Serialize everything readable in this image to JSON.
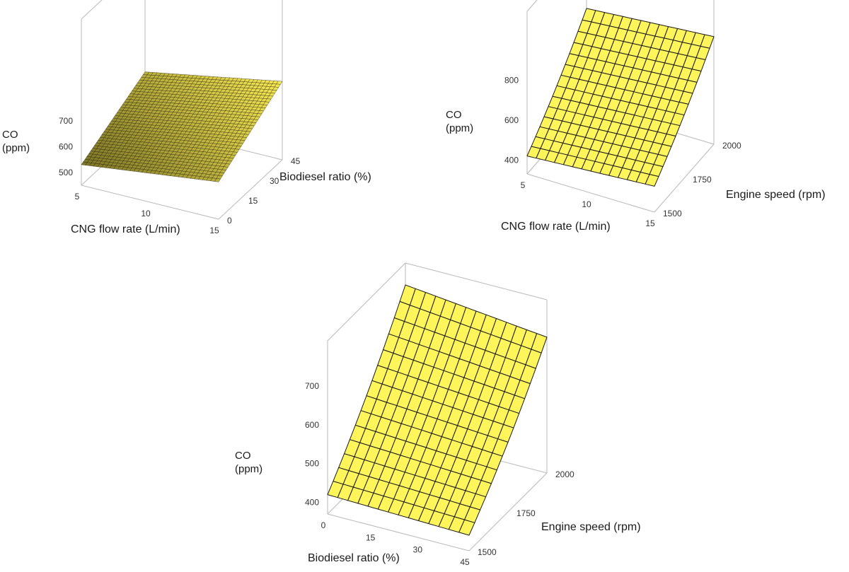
{
  "colors": {
    "surface_fill": "#fdf55a",
    "surface_fill_shade": "#e4d83c",
    "mesh_line": "#1a1a1a",
    "box_line": "#b8b8b8",
    "text": "#1a1a1a"
  },
  "chart_data": [
    {
      "type": "surface",
      "zlabel": "CO\n(ppm)",
      "xlabel": "CNG flow rate (L/min)",
      "ylabel": "Biodiesel ratio (%)",
      "xticks": [
        "5",
        "10",
        "15"
      ],
      "yticks": [
        "0",
        "15",
        "30",
        "45"
      ],
      "zticks": [
        "500",
        "600",
        "700"
      ],
      "xlim": [
        5,
        15
      ],
      "ylim": [
        0,
        45
      ],
      "zlim": [
        450,
        780
      ],
      "grid": true,
      "z_corners": {
        "x_min_y_min": 530,
        "x_max_y_min": 595,
        "x_min_y_max": 660,
        "x_max_y_max": 755
      },
      "mesh_shading": "dense"
    },
    {
      "type": "surface",
      "zlabel": "CO\n(ppm)",
      "xlabel": "CNG flow rate (L/min)",
      "ylabel": "Engine speed (rpm)",
      "xticks": [
        "5",
        "10",
        "15"
      ],
      "yticks": [
        "1500",
        "1750",
        "2000"
      ],
      "zticks": [
        "400",
        "600",
        "800"
      ],
      "xlim": [
        5,
        15
      ],
      "ylim": [
        1500,
        2000
      ],
      "zlim": [
        330,
        880
      ],
      "grid": true,
      "z_corners": {
        "x_min_y_min": 420,
        "x_max_y_min": 460,
        "x_min_y_max": 820,
        "x_max_y_max": 870
      },
      "mesh_shading": "open"
    },
    {
      "type": "surface",
      "zlabel": "CO\n(ppm)",
      "xlabel": "Biodiesel ratio (%)",
      "ylabel": "Engine speed (rpm)",
      "xticks": [
        "0",
        "15",
        "30",
        "45"
      ],
      "yticks": [
        "1500",
        "1750",
        "2000"
      ],
      "zticks": [
        "400",
        "500",
        "600",
        "700"
      ],
      "xlim": [
        0,
        45
      ],
      "ylim": [
        1500,
        2000
      ],
      "zlim": [
        370,
        780
      ],
      "grid": true,
      "z_corners": {
        "x_min_y_min": 420,
        "x_max_y_min": 410,
        "x_min_y_max": 760,
        "x_max_y_max": 720
      },
      "mesh_shading": "open"
    }
  ]
}
